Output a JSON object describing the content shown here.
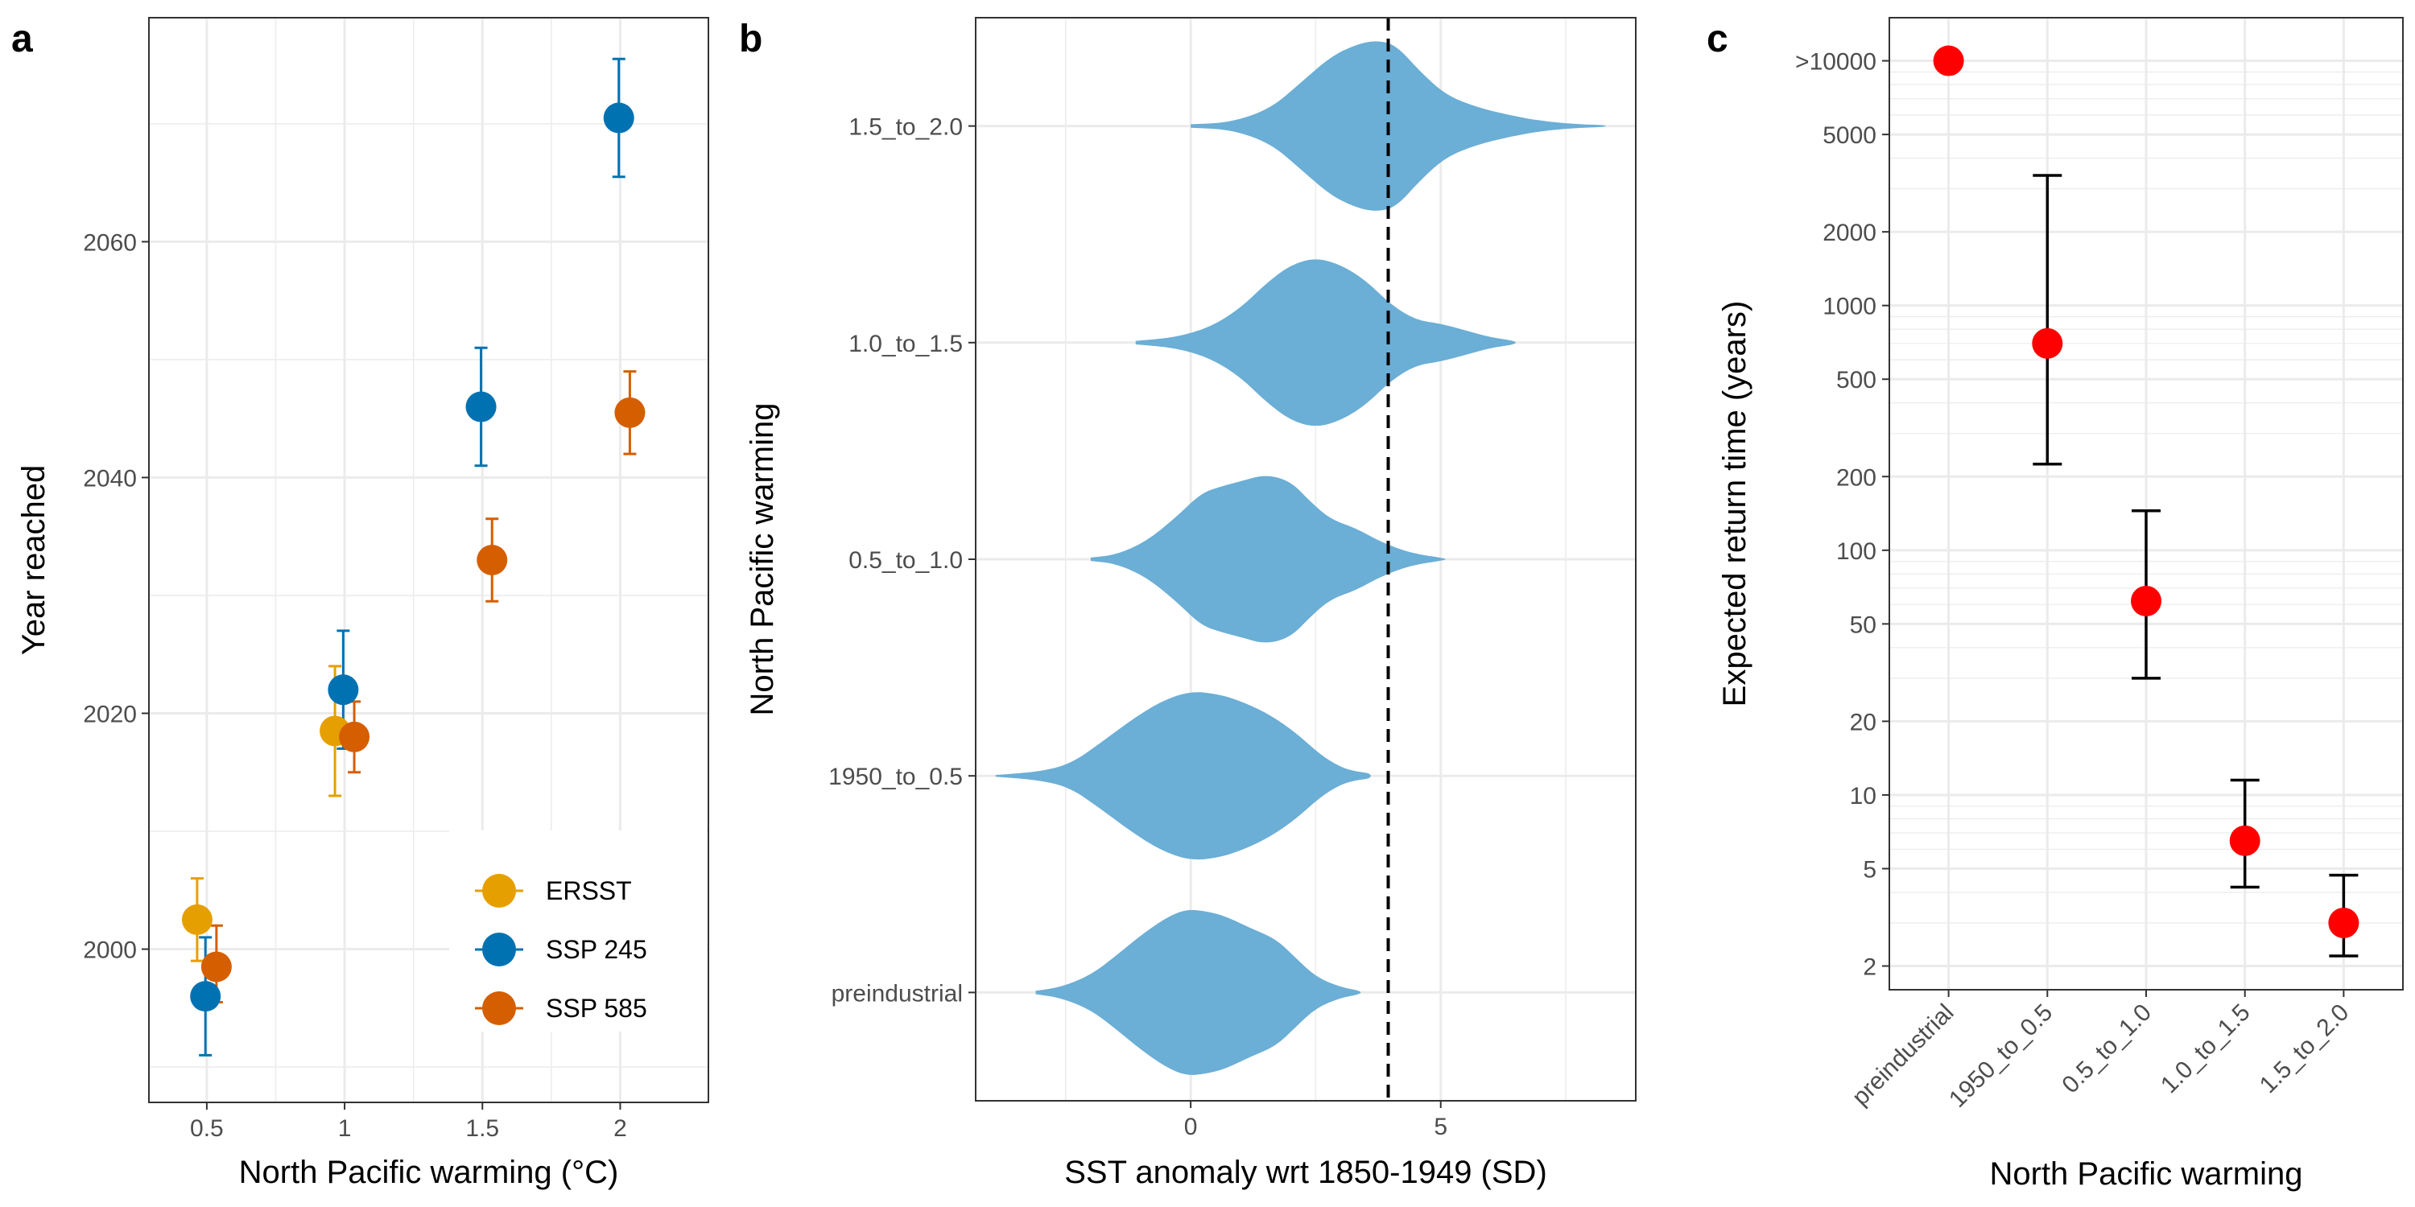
{
  "colors": {
    "ersst": "#E69F00",
    "ssp245": "#0072B2",
    "ssp585": "#D55E00",
    "violin": "#6BAED6",
    "return_point": "#FF0000",
    "grid": "#EBEBEB",
    "panel_border": "#333333"
  },
  "chart_data": [
    {
      "panel": "a",
      "type": "scatter",
      "xlabel": "North Pacific warming (°C)",
      "ylabel": "Year reached",
      "x_ticks": [
        "0.5",
        "1",
        "1.5",
        "2"
      ],
      "x_tick_values": [
        0.5,
        1,
        1.5,
        2
      ],
      "y_ticks": [
        "2000",
        "2020",
        "2040",
        "2060"
      ],
      "y_tick_values": [
        2000,
        2020,
        2040,
        2060
      ],
      "xlim": [
        0.29,
        2.32
      ],
      "ylim": [
        1987,
        2079
      ],
      "legend_position": "bottom-right",
      "series": [
        {
          "name": "ERSST",
          "color": "#E69F00",
          "points": [
            {
              "x": 0.5,
              "y": 2002.5,
              "lo": 1999,
              "hi": 2006
            },
            {
              "x": 1,
              "y": 2018.5,
              "lo": 2013,
              "hi": 2024
            }
          ]
        },
        {
          "name": "SSP 245",
          "color": "#0072B2",
          "points": [
            {
              "x": 0.5,
              "y": 1996,
              "lo": 1991,
              "hi": 2001
            },
            {
              "x": 1,
              "y": 2022,
              "lo": 2017,
              "hi": 2027
            },
            {
              "x": 1.5,
              "y": 2046,
              "lo": 2041,
              "hi": 2051
            },
            {
              "x": 2,
              "y": 2070.5,
              "lo": 2065.5,
              "hi": 2075.5
            }
          ]
        },
        {
          "name": "SSP 585",
          "color": "#D55E00",
          "points": [
            {
              "x": 0.5,
              "y": 1998.5,
              "lo": 1995.5,
              "hi": 2002
            },
            {
              "x": 1,
              "y": 2018,
              "lo": 2015,
              "hi": 2021
            },
            {
              "x": 1.5,
              "y": 2033,
              "lo": 2029.5,
              "hi": 2036.5
            },
            {
              "x": 2,
              "y": 2045.5,
              "lo": 2042,
              "hi": 2049
            }
          ]
        }
      ]
    },
    {
      "panel": "b",
      "type": "violin",
      "xlabel": "SST anomaly wrt 1850-1949 (SD)",
      "ylabel": "North Pacific warming",
      "x_ticks": [
        "0",
        "5"
      ],
      "x_tick_values": [
        0,
        5
      ],
      "xlim": [
        -4.3,
        8.9
      ],
      "reference_line_x": 3.95,
      "categories": [
        "preindustrial",
        "1950_to_0.5",
        "0.5_to_1.0",
        "1.0_to_1.5",
        "1.5_to_2.0"
      ],
      "violins": [
        {
          "category": "preindustrial",
          "min": -3.1,
          "max": 3.4,
          "profile": [
            [
              -3.1,
              0.02
            ],
            [
              -2.6,
              0.06
            ],
            [
              -2.0,
              0.2
            ],
            [
              -1.5,
              0.42
            ],
            [
              -1.0,
              0.66
            ],
            [
              -0.5,
              0.86
            ],
            [
              -0.1,
              0.96
            ],
            [
              0.3,
              0.94
            ],
            [
              0.7,
              0.88
            ],
            [
              1.2,
              0.74
            ],
            [
              1.7,
              0.62
            ],
            [
              2.1,
              0.4
            ],
            [
              2.5,
              0.18
            ],
            [
              3.0,
              0.06
            ],
            [
              3.4,
              0.02
            ]
          ]
        },
        {
          "category": "1950_to_0.5",
          "min": -3.9,
          "max": 3.6,
          "profile": [
            [
              -3.9,
              0.01
            ],
            [
              -3.0,
              0.05
            ],
            [
              -2.4,
              0.14
            ],
            [
              -1.8,
              0.38
            ],
            [
              -1.2,
              0.64
            ],
            [
              -0.6,
              0.86
            ],
            [
              0.0,
              0.98
            ],
            [
              0.6,
              0.94
            ],
            [
              1.1,
              0.84
            ],
            [
              1.6,
              0.7
            ],
            [
              2.1,
              0.5
            ],
            [
              2.6,
              0.24
            ],
            [
              3.0,
              0.1
            ],
            [
              3.3,
              0.05
            ],
            [
              3.6,
              0.03
            ]
          ]
        },
        {
          "category": "0.5_to_1.0",
          "min": -2.0,
          "max": 5.1,
          "profile": [
            [
              -2.0,
              0.02
            ],
            [
              -1.5,
              0.05
            ],
            [
              -0.9,
              0.2
            ],
            [
              -0.3,
              0.48
            ],
            [
              0.2,
              0.76
            ],
            [
              0.6,
              0.84
            ],
            [
              1.0,
              0.9
            ],
            [
              1.5,
              0.98
            ],
            [
              2.0,
              0.9
            ],
            [
              2.4,
              0.66
            ],
            [
              2.8,
              0.46
            ],
            [
              3.3,
              0.36
            ],
            [
              3.8,
              0.2
            ],
            [
              4.4,
              0.07
            ],
            [
              5.1,
              0.01
            ]
          ]
        },
        {
          "category": "1.0_to_1.5",
          "min": -1.1,
          "max": 6.5,
          "profile": [
            [
              -1.1,
              0.02
            ],
            [
              -0.3,
              0.06
            ],
            [
              0.4,
              0.18
            ],
            [
              1.0,
              0.4
            ],
            [
              1.5,
              0.68
            ],
            [
              2.0,
              0.9
            ],
            [
              2.5,
              0.98
            ],
            [
              3.0,
              0.9
            ],
            [
              3.5,
              0.72
            ],
            [
              4.0,
              0.44
            ],
            [
              4.5,
              0.26
            ],
            [
              5.0,
              0.22
            ],
            [
              5.5,
              0.14
            ],
            [
              6.0,
              0.06
            ],
            [
              6.5,
              0.02
            ]
          ]
        },
        {
          "category": "1.5_to_2.0",
          "min": 0.0,
          "max": 8.3,
          "profile": [
            [
              0.0,
              0.02
            ],
            [
              0.8,
              0.04
            ],
            [
              1.6,
              0.2
            ],
            [
              2.2,
              0.5
            ],
            [
              2.8,
              0.8
            ],
            [
              3.3,
              0.94
            ],
            [
              3.7,
              0.99
            ],
            [
              4.1,
              0.94
            ],
            [
              4.6,
              0.62
            ],
            [
              5.1,
              0.36
            ],
            [
              5.7,
              0.22
            ],
            [
              6.4,
              0.12
            ],
            [
              7.1,
              0.05
            ],
            [
              7.8,
              0.02
            ],
            [
              8.3,
              0.01
            ]
          ]
        }
      ]
    },
    {
      "panel": "c",
      "type": "scatter",
      "scale_y": "log",
      "xlabel": "North Pacific warming",
      "ylabel": "Expected return time (years)",
      "categories": [
        "preindustrial",
        "1950_to_0.5",
        "0.5_to_1.0",
        "1.0_to_1.5",
        "1.5_to_2.0"
      ],
      "y_ticks": [
        "2",
        "5",
        "10",
        "20",
        "50",
        "100",
        "200",
        "500",
        "1000",
        "2000",
        "5000",
        ">10000"
      ],
      "y_tick_values": [
        2,
        5,
        10,
        20,
        50,
        100,
        200,
        500,
        1000,
        2000,
        5000,
        10000
      ],
      "ylim": [
        1.6,
        15000
      ],
      "points": [
        {
          "category": "preindustrial",
          "y": 10000,
          "lo": null,
          "hi": null
        },
        {
          "category": "1950_to_0.5",
          "y": 700,
          "lo": 225,
          "hi": 3400
        },
        {
          "category": "0.5_to_1.0",
          "y": 62,
          "lo": 30,
          "hi": 145
        },
        {
          "category": "1.0_to_1.5",
          "y": 6.5,
          "lo": 4.2,
          "hi": 11.5
        },
        {
          "category": "1.5_to_2.0",
          "y": 3.0,
          "lo": 2.2,
          "hi": 4.7
        }
      ]
    }
  ],
  "panel_labels": {
    "a": "a",
    "b": "b",
    "c": "c"
  },
  "legend": {
    "items": [
      "ERSST",
      "SSP 245",
      "SSP 585"
    ]
  }
}
